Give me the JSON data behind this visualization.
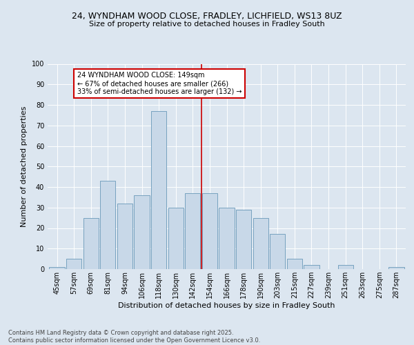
{
  "title1": "24, WYNDHAM WOOD CLOSE, FRADLEY, LICHFIELD, WS13 8UZ",
  "title2": "Size of property relative to detached houses in Fradley South",
  "xlabel": "Distribution of detached houses by size in Fradley South",
  "ylabel": "Number of detached properties",
  "bar_labels": [
    "45sqm",
    "57sqm",
    "69sqm",
    "81sqm",
    "94sqm",
    "106sqm",
    "118sqm",
    "130sqm",
    "142sqm",
    "154sqm",
    "166sqm",
    "178sqm",
    "190sqm",
    "203sqm",
    "215sqm",
    "227sqm",
    "239sqm",
    "251sqm",
    "263sqm",
    "275sqm",
    "287sqm"
  ],
  "bar_values": [
    1,
    5,
    25,
    43,
    32,
    36,
    77,
    30,
    37,
    37,
    30,
    29,
    25,
    17,
    5,
    2,
    0,
    2,
    0,
    0,
    1
  ],
  "bar_color": "#c8d8e8",
  "bar_edge_color": "#6898b8",
  "bg_color": "#dce6f0",
  "plot_bg_color": "#dce6f0",
  "vline_color": "#cc0000",
  "annotation_text": "24 WYNDHAM WOOD CLOSE: 149sqm\n← 67% of detached houses are smaller (266)\n33% of semi-detached houses are larger (132) →",
  "annotation_box_color": "#ffffff",
  "annotation_box_edge": "#cc0000",
  "footer": "Contains HM Land Registry data © Crown copyright and database right 2025.\nContains public sector information licensed under the Open Government Licence v3.0.",
  "ylim": [
    0,
    100
  ],
  "yticks": [
    0,
    10,
    20,
    30,
    40,
    50,
    60,
    70,
    80,
    90,
    100
  ],
  "grid_color": "#ffffff",
  "title1_fontsize": 9,
  "title2_fontsize": 8,
  "xlabel_fontsize": 8,
  "ylabel_fontsize": 8,
  "tick_fontsize": 7,
  "annot_fontsize": 7,
  "footer_fontsize": 6
}
